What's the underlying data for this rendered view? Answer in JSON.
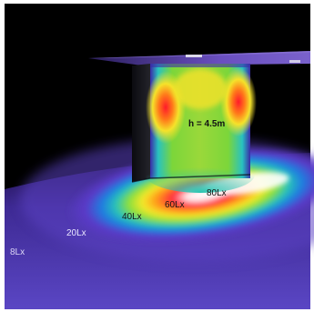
{
  "labels": {
    "height": "h = 4.5m",
    "lux_80": "80Lx",
    "lux_60": "60Lx",
    "lux_40": "40Lx",
    "lux_20": "20Lx",
    "lux_8": "8Lx"
  },
  "colors": {
    "background": "#000000",
    "frame": "#ffffff",
    "floor_outer": "#4b35b8",
    "ceiling": "#6a4fc0"
  }
}
